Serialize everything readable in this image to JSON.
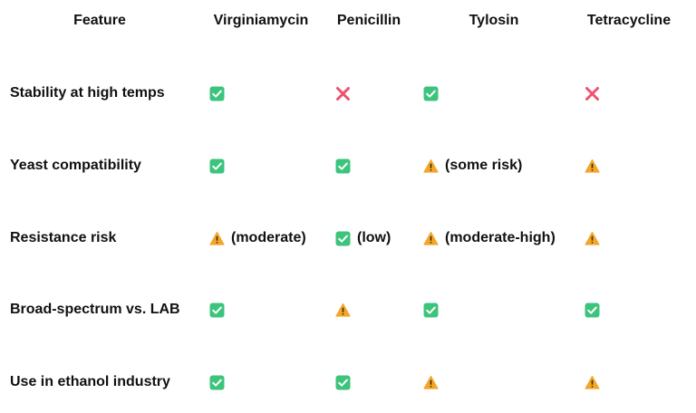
{
  "table": {
    "headers": {
      "feature": "Feature",
      "virginiamycin": "Virginiamycin",
      "penicillin": "Penicillin",
      "tylosin": "Tylosin",
      "tetracycline": "Tetracycline"
    },
    "rows": [
      {
        "label": "Stability at high temps",
        "virginiamycin": {
          "icon": "check-icon",
          "note": ""
        },
        "penicillin": {
          "icon": "cross-icon",
          "note": ""
        },
        "tylosin": {
          "icon": "check-icon",
          "note": ""
        },
        "tetracycline": {
          "icon": "cross-icon",
          "note": ""
        }
      },
      {
        "label": "Yeast compatibility",
        "virginiamycin": {
          "icon": "check-icon",
          "note": ""
        },
        "penicillin": {
          "icon": "check-icon",
          "note": ""
        },
        "tylosin": {
          "icon": "warning-icon",
          "note": "(some risk)"
        },
        "tetracycline": {
          "icon": "warning-icon",
          "note": ""
        }
      },
      {
        "label": "Resistance risk",
        "virginiamycin": {
          "icon": "warning-icon",
          "note": "(moderate)"
        },
        "penicillin": {
          "icon": "check-icon",
          "note": "(low)"
        },
        "tylosin": {
          "icon": "warning-icon",
          "note": "(moderate-high)"
        },
        "tetracycline": {
          "icon": "warning-icon",
          "note": ""
        }
      },
      {
        "label": "Broad-spectrum vs. LAB",
        "virginiamycin": {
          "icon": "check-icon",
          "note": ""
        },
        "penicillin": {
          "icon": "warning-icon",
          "note": ""
        },
        "tylosin": {
          "icon": "check-icon",
          "note": ""
        },
        "tetracycline": {
          "icon": "check-icon",
          "note": ""
        }
      },
      {
        "label": "Use in ethanol industry",
        "virginiamycin": {
          "icon": "check-icon",
          "note": ""
        },
        "penicillin": {
          "icon": "check-icon",
          "note": ""
        },
        "tylosin": {
          "icon": "warning-icon",
          "note": ""
        },
        "tetracycline": {
          "icon": "warning-icon",
          "note": ""
        }
      }
    ]
  },
  "colors": {
    "check": "#3cc47c",
    "cross": "#f0506e",
    "warning": "#f4a62a",
    "text": "#111111"
  }
}
